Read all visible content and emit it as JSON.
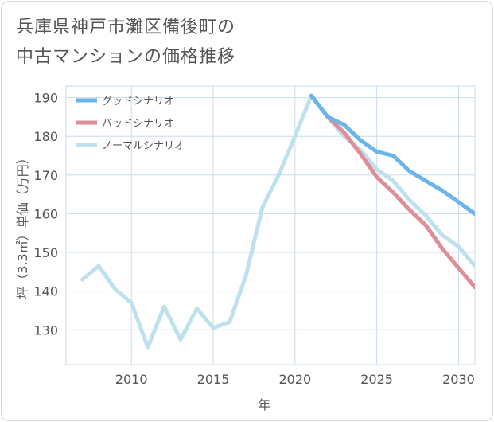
{
  "page_title": {
    "line1": "兵庫県神戸市灘区備後町の",
    "line2": "中古マンションの価格推移"
  },
  "colors": {
    "good": "#6bb5ea",
    "bad": "#dc8f97",
    "normal": "#bfe1ee",
    "grid": "#ccdceb",
    "axis_text": "#555555"
  },
  "chart_data": {
    "type": "line",
    "title": "兵庫県神戸市灘区備後町の中古マンションの価格推移",
    "xlabel": "年",
    "ylabel": "坪（3.3㎡）単価（万円）",
    "xlim": [
      2006,
      2031
    ],
    "ylim": [
      121,
      193
    ],
    "x_ticks": [
      2010,
      2015,
      2020,
      2025,
      2030
    ],
    "y_ticks": [
      130,
      140,
      150,
      160,
      170,
      180,
      190
    ],
    "x_tick_labels": [
      "2010",
      "2015",
      "2020",
      "2025",
      "2030"
    ],
    "y_tick_labels": [
      "130",
      "140",
      "150",
      "160",
      "170",
      "180",
      "190"
    ],
    "legend_position": "top-left",
    "series": [
      {
        "name": "グッドシナリオ",
        "color_key": "good",
        "x": [
          2021,
          2022,
          2023,
          2024,
          2025,
          2026,
          2027,
          2028,
          2029,
          2030,
          2031
        ],
        "values": [
          190.5,
          185,
          183,
          179,
          176,
          175,
          171,
          168.5,
          166,
          163,
          160
        ]
      },
      {
        "name": "バッドシナリオ",
        "color_key": "bad",
        "x": [
          2021,
          2022,
          2023,
          2024,
          2025,
          2026,
          2027,
          2028,
          2029,
          2030,
          2031
        ],
        "values": [
          190.5,
          185,
          181,
          175.5,
          169.5,
          165.5,
          161,
          157,
          151,
          146,
          141
        ]
      },
      {
        "name": "ノーマルシナリオ",
        "color_key": "normal",
        "x": [
          2007,
          2008,
          2009,
          2010,
          2011,
          2012,
          2013,
          2014,
          2015,
          2016,
          2017,
          2018,
          2019,
          2020,
          2021,
          2022,
          2023,
          2024,
          2025,
          2026,
          2027,
          2028,
          2029,
          2030,
          2031
        ],
        "values": [
          143,
          146.5,
          140.5,
          137,
          125.5,
          136,
          127.5,
          135.5,
          130.5,
          132,
          144,
          161.5,
          170,
          180,
          190.5,
          185,
          180,
          176.5,
          171.5,
          168.5,
          163.5,
          159.5,
          154.5,
          151.5,
          146.5
        ]
      }
    ]
  }
}
